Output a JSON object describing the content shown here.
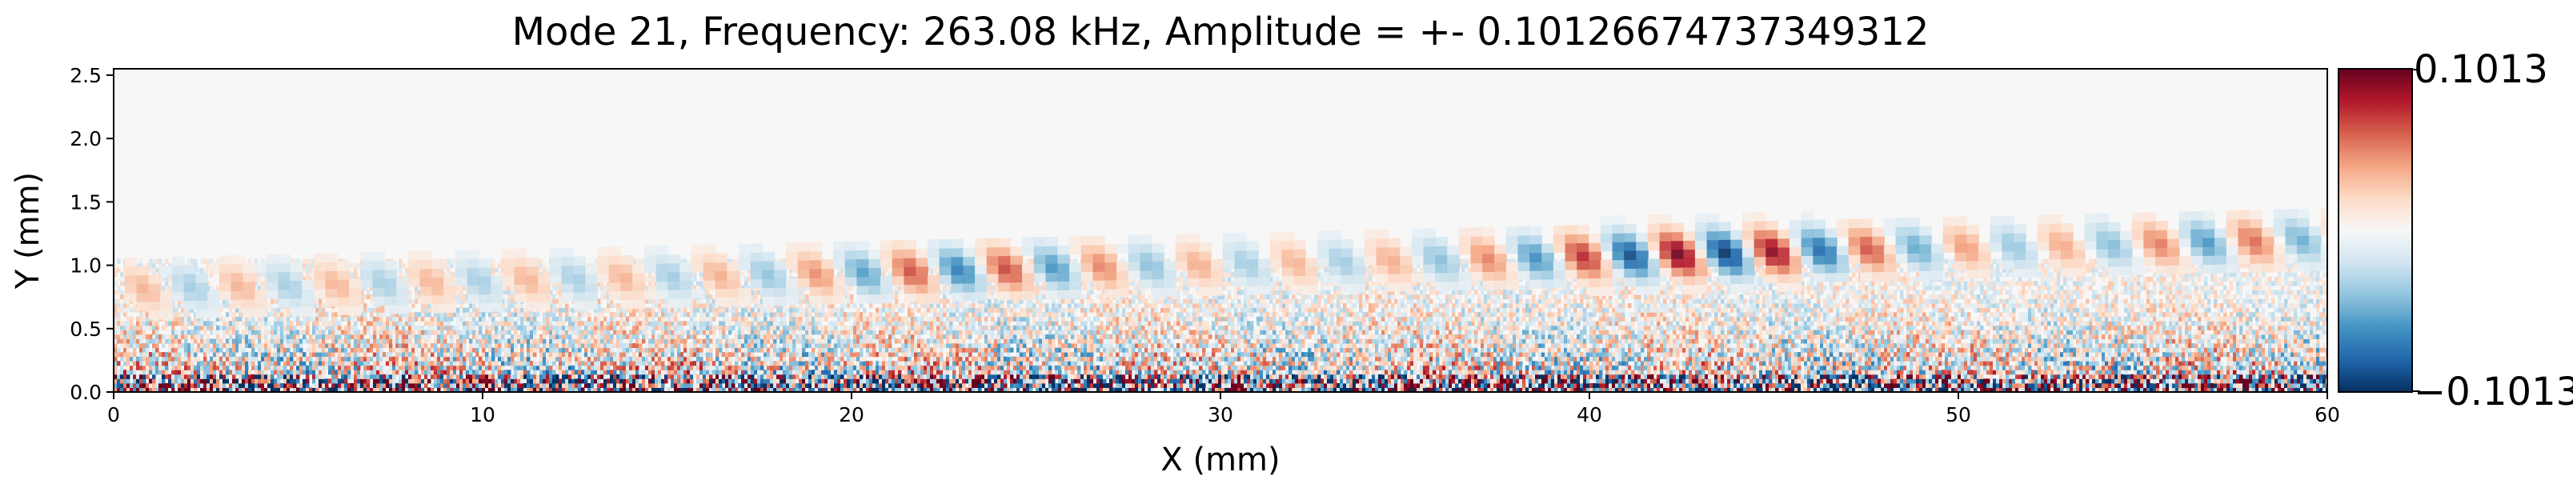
{
  "chart_data": {
    "type": "heatmap",
    "title": "Mode 21, Frequency: 263.08 kHz, Amplitude = +- 0.10126674737349312",
    "xlabel": "X (mm)",
    "ylabel": "Y (mm)",
    "xlim": [
      0,
      60
    ],
    "ylim": [
      0,
      2.55
    ],
    "x_ticks": [
      0,
      10,
      20,
      30,
      40,
      50,
      60
    ],
    "x_tick_labels": [
      "0",
      "10",
      "20",
      "30",
      "40",
      "50",
      "60"
    ],
    "y_ticks": [
      0.0,
      0.5,
      1.0,
      1.5,
      2.0,
      2.5
    ],
    "y_tick_labels": [
      "0.0",
      "0.5",
      "1.0",
      "1.5",
      "2.0",
      "2.5"
    ],
    "colormap": "RdBu_r",
    "colorbar": {
      "min": -0.1013,
      "max": 0.1013,
      "tick_labels": [
        "0.1013",
        "−0.1013"
      ],
      "colors": [
        "#67001f",
        "#b2182b",
        "#d6604d",
        "#f4a582",
        "#fddbc7",
        "#f7f7f7",
        "#d1e5f0",
        "#92c5de",
        "#4393c3",
        "#2166ac",
        "#053061"
      ]
    },
    "grid": false
  }
}
